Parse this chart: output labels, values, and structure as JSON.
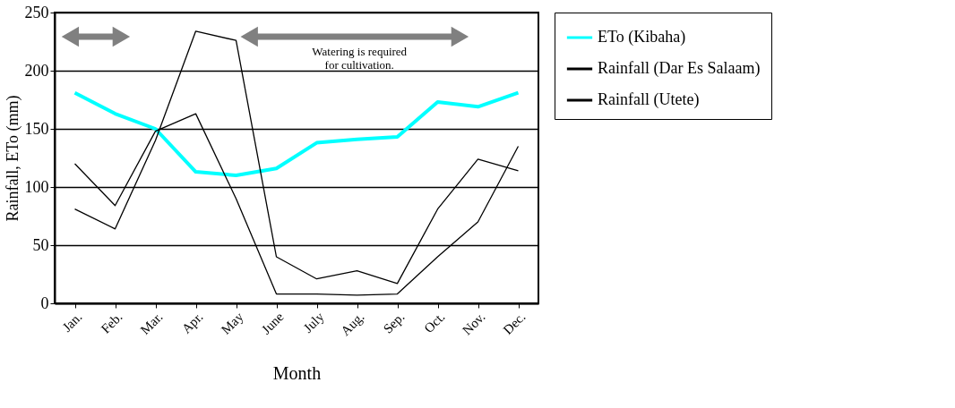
{
  "chart_data": {
    "type": "line",
    "xlabel": "Month",
    "ylabel": "Rainfall, ETo (mm)",
    "categories": [
      "Jan.",
      "Feb.",
      "Mar.",
      "Apr.",
      "May",
      "June",
      "July",
      "Aug.",
      "Sep.",
      "Oct.",
      "Nov.",
      "Dec."
    ],
    "series": [
      {
        "name": "ETo (Kibaha)",
        "color": "#00ffff",
        "values": [
          181,
          163,
          150,
          113,
          110,
          116,
          138,
          141,
          143,
          173,
          169,
          181
        ]
      },
      {
        "name": "Rainfall (Dar Es Salaam)",
        "color": "#000000",
        "values": [
          81,
          64,
          140,
          234,
          226,
          40,
          21,
          28,
          17,
          81,
          124,
          114
        ]
      },
      {
        "name": "Rainfall (Utete)",
        "color": "#000000",
        "values": [
          120,
          84,
          148,
          163,
          90,
          8,
          8,
          7,
          8,
          40,
          70,
          135
        ]
      }
    ],
    "ylim": [
      0,
      250
    ],
    "yticks": [
      0,
      50,
      100,
      150,
      200,
      250
    ],
    "grid": "y",
    "legend": "right",
    "marker": "none",
    "line_style": "solid",
    "annotations": [
      "Watering is required for cultivation."
    ]
  }
}
